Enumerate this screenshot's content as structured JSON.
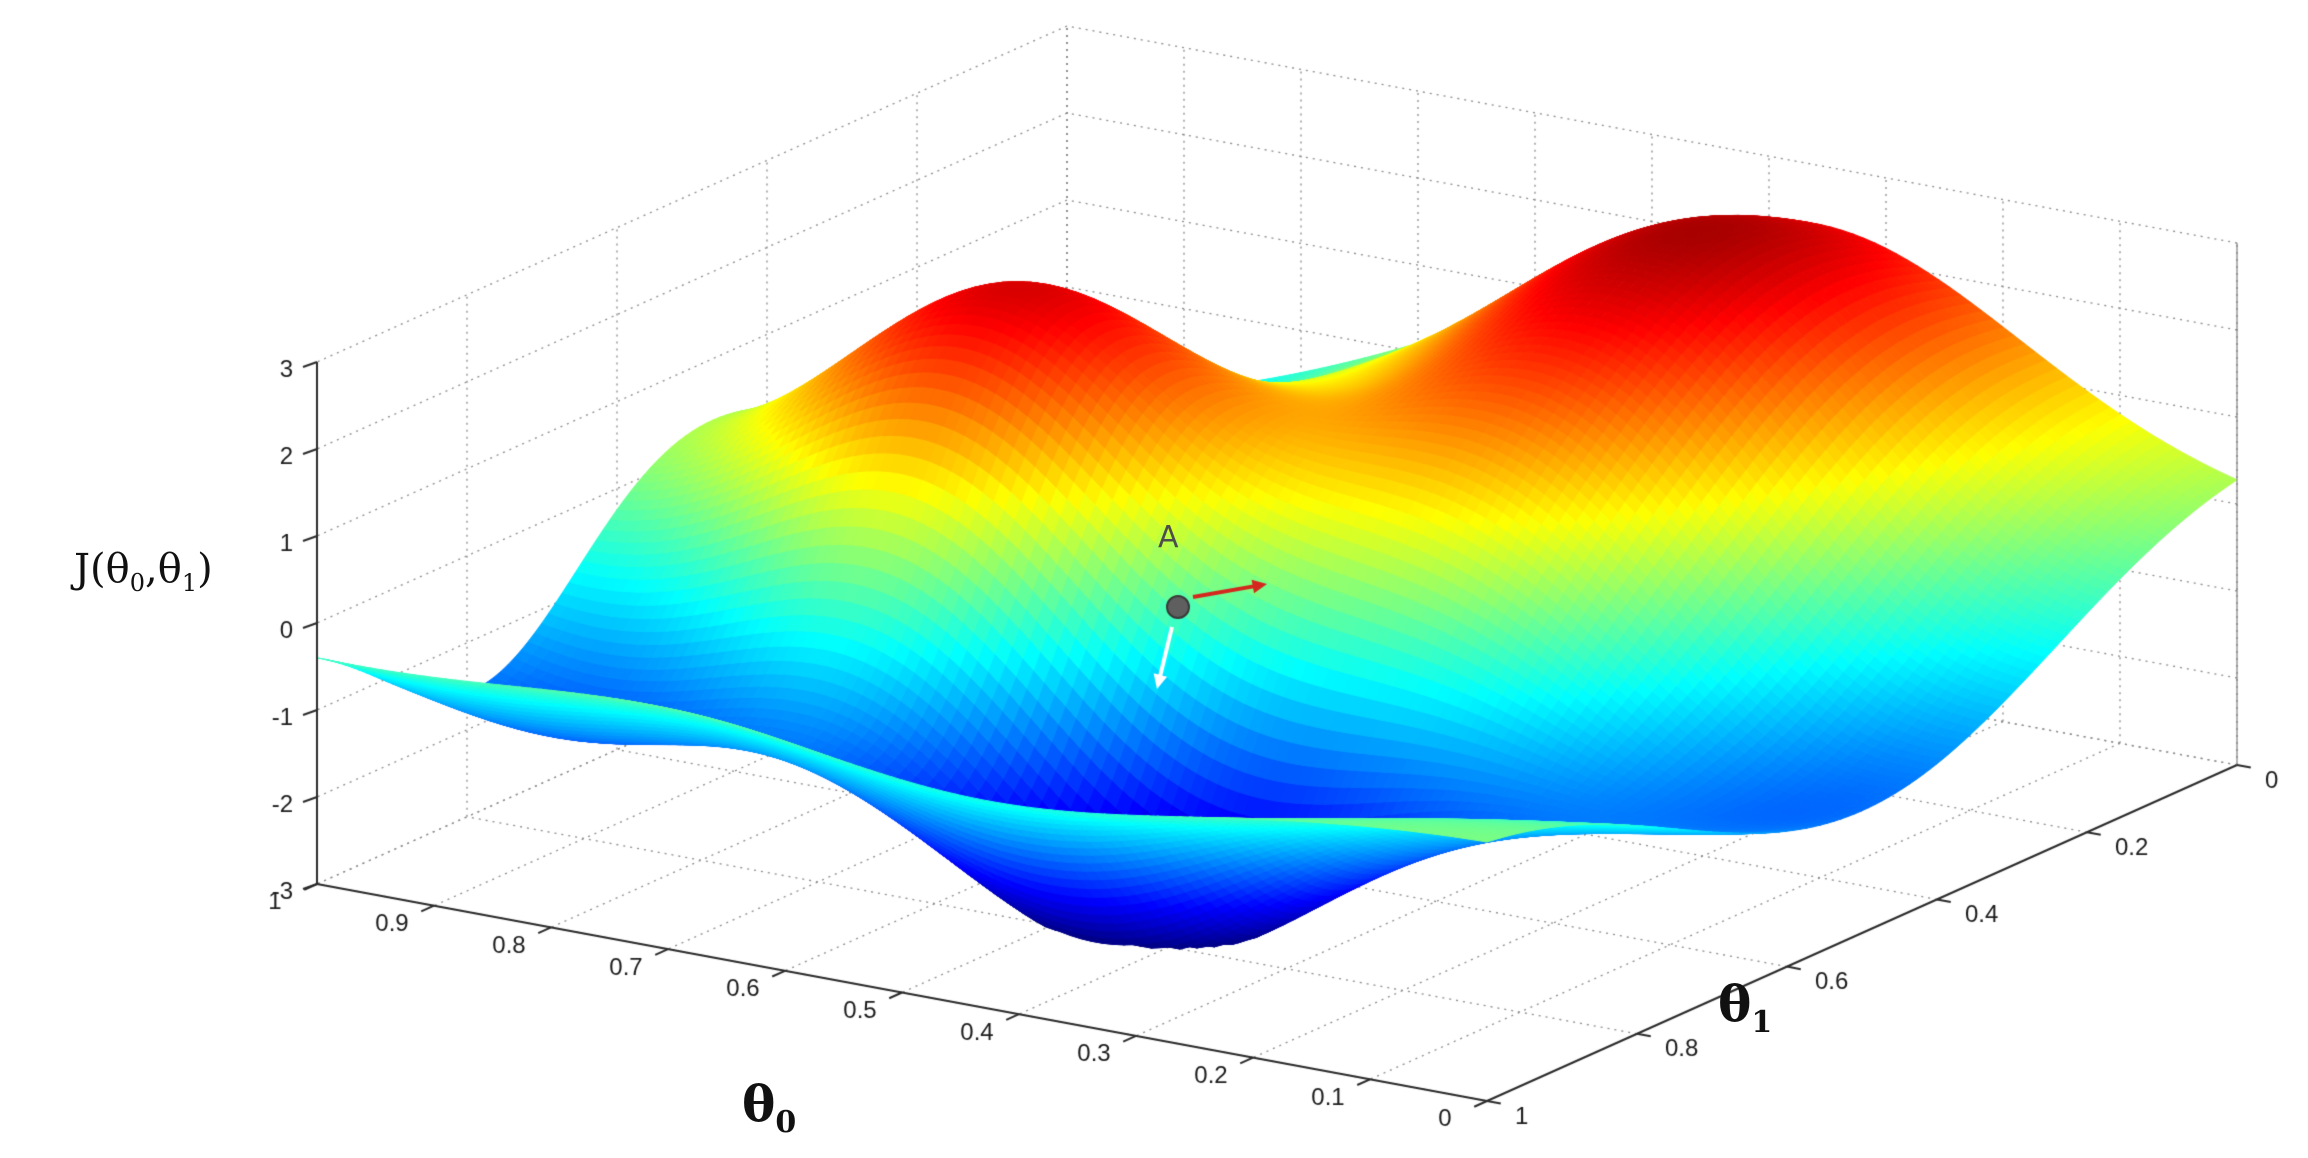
{
  "page": {
    "background": "#ffffff",
    "top_strip_color": "rgba(0,0,0,0.045)",
    "top_dash_color": "#9a9a9a"
  },
  "chart_data": {
    "type": "surface",
    "title": "",
    "description": "3D surface plot of a non-convex cost function J(theta0, theta1) with a gradient-descent point labeled A",
    "colormap": "jet",
    "view": {
      "azimuth": -37.5,
      "elevation": 30
    },
    "grid": {
      "on": true,
      "line_style": "dotted"
    },
    "x_axis": {
      "label_base": "θ",
      "label_sub": "0",
      "range": [
        0,
        1
      ],
      "tick_values": [
        1,
        0.9,
        0.8,
        0.7,
        0.6,
        0.5,
        0.4,
        0.3,
        0.2,
        0.1,
        0
      ],
      "ticks": [
        "1",
        "0.9",
        "0.8",
        "0.7",
        "0.6",
        "0.5",
        "0.4",
        "0.3",
        "0.2",
        "0.1",
        "0"
      ]
    },
    "y_axis": {
      "label_base": "θ",
      "label_sub": "1",
      "range": [
        0,
        1
      ],
      "tick_values": [
        0,
        0.2,
        0.4,
        0.6,
        0.8,
        1
      ],
      "ticks": [
        "0",
        "0.2",
        "0.4",
        "0.6",
        "0.8",
        "1"
      ]
    },
    "z_axis": {
      "label_parts": {
        "p1": "J(θ",
        "s1": "0",
        "p2": ",θ",
        "s2": "1",
        "p3": ")"
      },
      "range": [
        -3,
        3
      ],
      "tick_values": [
        3,
        2,
        1,
        0,
        -1,
        -2,
        -3
      ],
      "ticks": [
        "3",
        "2",
        "1",
        "0",
        "-1",
        "-2",
        "-3"
      ]
    },
    "surface_model": {
      "grid_n": 110,
      "offset": 0.05,
      "clamp": [
        -3,
        3
      ],
      "gaussians": [
        {
          "amp": 3.2,
          "cx": 0.36,
          "cy": 0.17,
          "sx": 0.18,
          "sy": 0.27
        },
        {
          "amp": 2.95,
          "cx": 0.74,
          "cy": 0.48,
          "sx": 0.14,
          "sy": 0.16
        },
        {
          "amp": -3.4,
          "cx": 0.46,
          "cy": 0.74,
          "sx": 0.16,
          "sy": 0.13
        },
        {
          "amp": -2.1,
          "cx": 0.88,
          "cy": 0.78,
          "sx": 0.17,
          "sy": 0.13
        },
        {
          "amp": -1.9,
          "cx": 0.1,
          "cy": 0.48,
          "sx": 0.2,
          "sy": 0.26
        },
        {
          "amp": -1.2,
          "cx": 0.97,
          "cy": 0.05,
          "sx": 0.22,
          "sy": 0.24
        },
        {
          "amp": -1.0,
          "cx": 0.57,
          "cy": 0.33,
          "sx": 0.12,
          "sy": 0.12
        }
      ],
      "ripple": {
        "amp": 0.2,
        "fx": 8.5,
        "fy": 6.5,
        "phx": 1.3,
        "phy": 0.4
      }
    },
    "features": [
      {
        "kind": "peak",
        "theta0": 0.36,
        "theta1": 0.17,
        "J": 2.9
      },
      {
        "kind": "peak",
        "theta0": 0.74,
        "theta1": 0.48,
        "J": 2.8
      },
      {
        "kind": "valley",
        "theta0": 0.46,
        "theta1": 0.74,
        "J": -3.2
      },
      {
        "kind": "valley",
        "theta0": 0.88,
        "theta1": 0.78,
        "J": -1.9
      },
      {
        "kind": "valley",
        "theta0": 0.1,
        "theta1": 0.48,
        "J": -1.6
      }
    ],
    "annotation": {
      "label": "A",
      "point": {
        "theta0": 0.55,
        "theta1": 0.55,
        "J": 0.3
      },
      "marker_color": "#5f5f5f",
      "marker_edge_color": "#3a3a3a",
      "arrows": [
        {
          "name": "arrow-right",
          "color": "#d4281e"
        },
        {
          "name": "arrow-down",
          "color": "#ffffff"
        }
      ]
    },
    "style": {
      "axis_color": "#2b2b2b",
      "grid_color": "#8c8c8c",
      "tick_text_color": "#1c1c1c",
      "background": "#ffffff"
    }
  }
}
